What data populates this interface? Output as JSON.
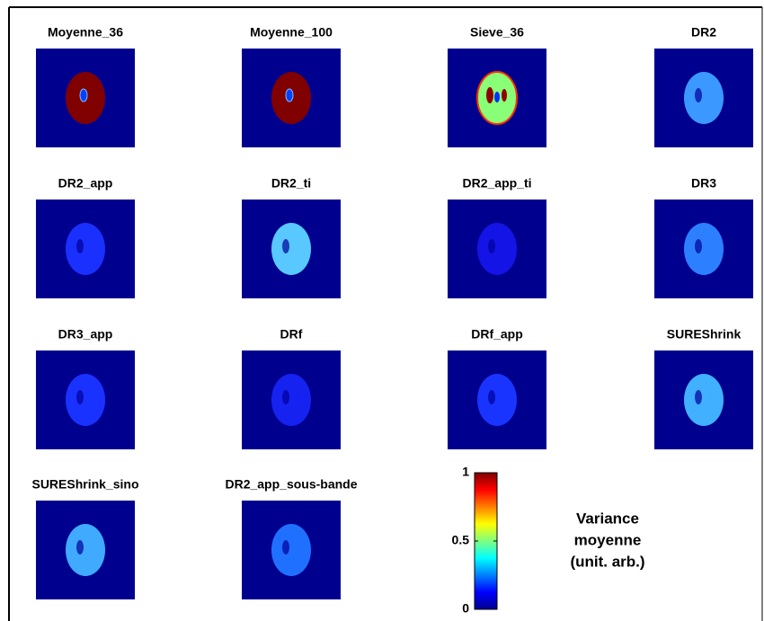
{
  "panels": [
    {
      "title": "Moyenne_36",
      "color": "#800000"
    },
    {
      "title": "Moyenne_100",
      "color": "#800000"
    },
    {
      "title": "Sieve_36",
      "color": "#88ff77"
    },
    {
      "title": "DR2",
      "color": "#3a98ff"
    },
    {
      "title": "DR2_app",
      "color": "#1a30ff"
    },
    {
      "title": "DR2_ti",
      "color": "#58c8ff"
    },
    {
      "title": "DR2_app_ti",
      "color": "#1414e6"
    },
    {
      "title": "DR3",
      "color": "#2c80ff"
    },
    {
      "title": "DR3_app",
      "color": "#1a32ff"
    },
    {
      "title": "DRf",
      "color": "#1622f0"
    },
    {
      "title": "DRf_app",
      "color": "#1a34ff"
    },
    {
      "title": "SUREShrink",
      "color": "#40b0ff"
    },
    {
      "title": "SUREShrink_sino",
      "color": "#40aaff"
    },
    {
      "title": "DR2_app_sous-bande",
      "color": "#2070ff"
    }
  ],
  "colorbar": {
    "lim": [
      0,
      1
    ],
    "ticks": [
      0,
      0.5,
      1
    ],
    "label": [
      "Variance",
      "moyenne",
      "(unit. arb.)"
    ]
  }
}
